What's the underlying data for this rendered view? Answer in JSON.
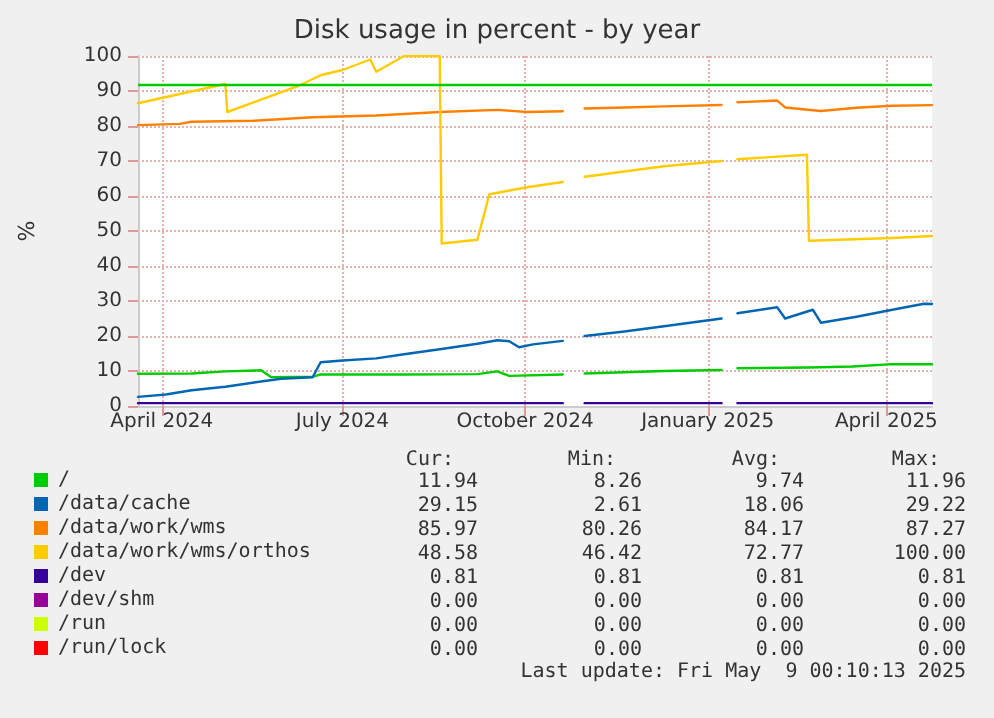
{
  "chart_data": {
    "type": "line",
    "title": "Disk usage in percent - by year",
    "ylabel": "%",
    "xlim": [
      "2024-04-04",
      "2025-05-09"
    ],
    "xticks": [
      {
        "value": "2024-04-16",
        "label": "April 2024"
      },
      {
        "value": "2024-07-16",
        "label": "July 2024"
      },
      {
        "value": "2024-10-16",
        "label": "October 2024"
      },
      {
        "value": "2025-01-16",
        "label": "January 2025"
      },
      {
        "value": "2025-04-16",
        "label": "April 2025"
      }
    ],
    "ylim": [
      0,
      100
    ],
    "yticks": [
      0,
      10,
      20,
      30,
      40,
      50,
      60,
      70,
      80,
      90,
      100
    ],
    "grid": true,
    "legend": "bottom",
    "marker": "none",
    "line_style": "solid",
    "ref_lines": [
      {
        "axis": "y",
        "value": 92,
        "color": "#00cc00"
      }
    ],
    "series": [
      {
        "name": "/",
        "color": "#00cc00",
        "x": [
          "2024-04-04",
          "2024-05-01",
          "2024-05-18",
          "2024-06-05",
          "2024-06-10",
          "2024-07-01",
          "2024-07-05",
          "2024-08-16",
          "2024-09-22",
          "2024-10-02",
          "2024-10-08",
          "2024-11-04",
          "2024-11-10",
          "2024-11-15",
          "2024-12-25",
          "2025-01-23",
          "2025-01-27",
          "2025-01-31",
          "2025-03-08",
          "2025-03-30",
          "2025-04-19",
          "2025-05-09"
        ],
        "values": [
          9.2,
          9.3,
          9.9,
          10.2,
          8.26,
          8.4,
          9.0,
          9.0,
          9.1,
          9.9,
          8.6,
          9.0,
          null,
          9.3,
          10.0,
          10.3,
          null,
          10.8,
          11.0,
          11.3,
          11.96,
          11.94
        ]
      },
      {
        "name": "/data/cache",
        "color": "#0066b3",
        "x": [
          "2024-04-04",
          "2024-04-18",
          "2024-05-01",
          "2024-05-18",
          "2024-06-05",
          "2024-06-15",
          "2024-07-01",
          "2024-07-05",
          "2024-07-16",
          "2024-08-02",
          "2024-08-16",
          "2024-09-03",
          "2024-09-22",
          "2024-10-02",
          "2024-10-08",
          "2024-10-13",
          "2024-10-20",
          "2024-11-04",
          "2024-11-10",
          "2024-11-15",
          "2024-12-05",
          "2024-12-25",
          "2025-01-23",
          "2025-01-27",
          "2025-01-31",
          "2025-02-20",
          "2025-02-24",
          "2025-03-10",
          "2025-03-14",
          "2025-04-01",
          "2025-04-19",
          "2025-05-05",
          "2025-05-09"
        ],
        "values": [
          2.61,
          3.3,
          4.5,
          5.5,
          7.0,
          7.8,
          8.2,
          12.5,
          13.0,
          13.6,
          14.8,
          16.2,
          17.8,
          18.8,
          18.5,
          16.8,
          17.6,
          18.6,
          null,
          20.0,
          21.3,
          22.8,
          25.0,
          null,
          26.5,
          28.2,
          25.0,
          27.5,
          23.8,
          25.5,
          27.5,
          29.22,
          29.15
        ]
      },
      {
        "name": "/data/work/wms",
        "color": "#ff8000",
        "x": [
          "2024-04-04",
          "2024-04-25",
          "2024-05-01",
          "2024-06-01",
          "2024-07-01",
          "2024-08-02",
          "2024-09-03",
          "2024-10-02",
          "2024-10-17",
          "2024-11-04",
          "2024-11-10",
          "2024-11-15",
          "2024-12-05",
          "2024-12-25",
          "2025-01-23",
          "2025-01-27",
          "2025-01-31",
          "2025-02-20",
          "2025-02-24",
          "2025-03-14",
          "2025-04-01",
          "2025-04-19",
          "2025-05-09"
        ],
        "values": [
          80.26,
          80.6,
          81.2,
          81.5,
          82.5,
          83.0,
          84.0,
          84.6,
          84.0,
          84.2,
          null,
          85.0,
          85.3,
          85.6,
          86.0,
          null,
          86.8,
          87.27,
          85.3,
          84.3,
          85.2,
          85.8,
          85.97
        ]
      },
      {
        "name": "/data/work/wms/orthos",
        "color": "#ffcc00",
        "x": [
          "2024-04-04",
          "2024-05-18",
          "2024-05-19",
          "2024-06-24",
          "2024-07-05",
          "2024-07-16",
          "2024-07-30",
          "2024-08-02",
          "2024-08-16",
          "2024-09-03",
          "2024-09-04",
          "2024-09-22",
          "2024-09-28",
          "2024-10-17",
          "2024-11-04",
          "2024-11-10",
          "2024-11-15",
          "2024-12-25",
          "2025-01-23",
          "2025-01-27",
          "2025-01-31",
          "2025-03-07",
          "2025-03-08",
          "2025-04-19",
          "2025-05-09"
        ],
        "values": [
          86.5,
          92.0,
          84.0,
          91.5,
          94.5,
          96.0,
          99.0,
          95.5,
          100.0,
          100.0,
          46.42,
          47.5,
          60.5,
          62.5,
          64.0,
          null,
          65.5,
          68.5,
          70.0,
          null,
          70.5,
          71.8,
          47.2,
          48.0,
          48.58
        ]
      },
      {
        "name": "/dev",
        "color": "#330099",
        "x": [
          "2024-04-04",
          "2024-11-04",
          "2024-11-10",
          "2024-11-15",
          "2025-01-23",
          "2025-01-27",
          "2025-01-31",
          "2025-05-09"
        ],
        "values": [
          0.81,
          0.81,
          null,
          0.81,
          0.81,
          null,
          0.81,
          0.81
        ]
      },
      {
        "name": "/dev/shm",
        "color": "#990099",
        "values": [
          null
        ]
      },
      {
        "name": "/run",
        "color": "#ccff00",
        "values": [
          null
        ]
      },
      {
        "name": "/run/lock",
        "color": "#ff0000",
        "values": [
          null
        ]
      }
    ],
    "annotations": [
      "Cur:",
      "Min:",
      "Avg:",
      "Max:",
      "11.94",
      "8.26",
      "9.74",
      "11.96",
      "29.15",
      "2.61",
      "18.06",
      "29.22",
      "85.97",
      "80.26",
      "84.17",
      "87.27",
      "48.58",
      "46.42",
      "72.77",
      "100.00",
      "0.81",
      "0.81",
      "0.81",
      "0.81",
      "0.00",
      "0.00",
      "0.00",
      "0.00",
      "0.00",
      "0.00",
      "0.00",
      "0.00",
      "0.00",
      "0.00",
      "0.00",
      "0.00",
      "Last update: Fri May  9 00:10:13 2025"
    ]
  }
}
